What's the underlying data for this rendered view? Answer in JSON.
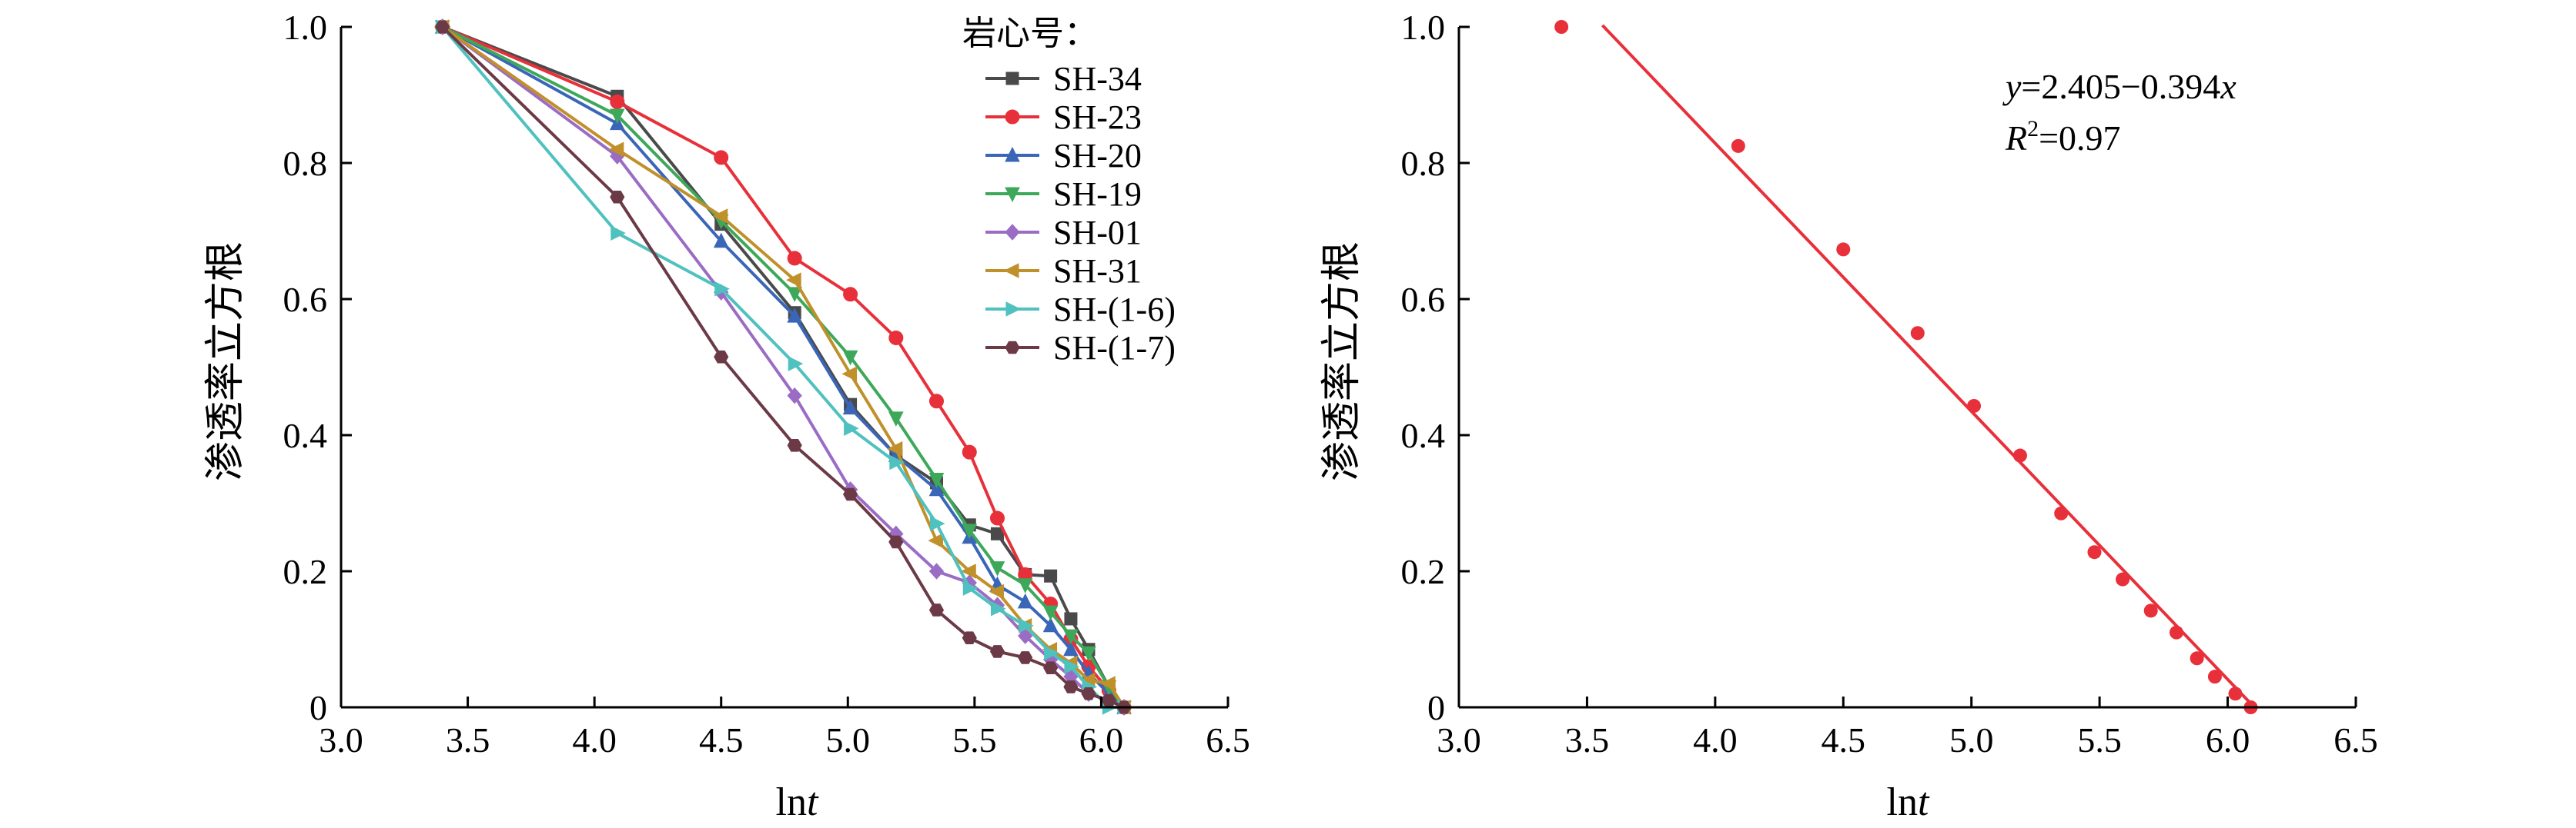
{
  "chart_data": [
    {
      "type": "line",
      "xlabel": "lnt",
      "ylabel": "渗透率立方根",
      "xlim": [
        3.0,
        6.5
      ],
      "ylim": [
        0,
        1.0
      ],
      "xticks": [
        "3.0",
        "3.5",
        "4.0",
        "4.5",
        "5.0",
        "5.5",
        "6.0",
        "6.5"
      ],
      "yticks": [
        "0",
        "0.2",
        "0.4",
        "0.6",
        "0.8",
        "1.0"
      ],
      "legend_title": "岩心号：",
      "legend_position": "top-right",
      "series": [
        {
          "name": "SH-34",
          "color": "#4a4a4a",
          "marker": "square",
          "x": [
            3.4,
            4.09,
            4.5,
            4.79,
            5.01,
            5.19,
            5.35,
            5.48,
            5.59,
            5.7,
            5.8,
            5.88,
            5.95,
            6.03,
            6.09
          ],
          "y": [
            1.0,
            0.898,
            0.71,
            0.58,
            0.445,
            0.37,
            0.33,
            0.268,
            0.255,
            0.195,
            0.193,
            0.13,
            0.085,
            0.03,
            0.0
          ]
        },
        {
          "name": "SH-23",
          "color": "#e8303a",
          "marker": "circle",
          "x": [
            3.4,
            4.09,
            4.5,
            4.79,
            5.01,
            5.19,
            5.35,
            5.48,
            5.59,
            5.7,
            5.8,
            5.88,
            5.95,
            6.03,
            6.09
          ],
          "y": [
            1.0,
            0.89,
            0.808,
            0.66,
            0.607,
            0.543,
            0.45,
            0.375,
            0.278,
            0.195,
            0.152,
            0.1,
            0.06,
            0.025,
            0.0
          ]
        },
        {
          "name": "SH-20",
          "color": "#3a66b8",
          "marker": "triangle-up",
          "x": [
            3.4,
            4.09,
            4.5,
            4.79,
            5.01,
            5.19,
            5.35,
            5.48,
            5.59,
            5.7,
            5.8,
            5.88,
            5.95,
            6.03,
            6.09
          ],
          "y": [
            1.0,
            0.858,
            0.685,
            0.575,
            0.44,
            0.37,
            0.32,
            0.25,
            0.18,
            0.155,
            0.12,
            0.085,
            0.05,
            0.02,
            0.0
          ]
        },
        {
          "name": "SH-19",
          "color": "#3ea85a",
          "marker": "triangle-down",
          "x": [
            3.4,
            4.09,
            4.5,
            4.79,
            5.01,
            5.19,
            5.35,
            5.48,
            5.59,
            5.7,
            5.8,
            5.88,
            5.95,
            6.03,
            6.09
          ],
          "y": [
            1.0,
            0.87,
            0.715,
            0.608,
            0.515,
            0.425,
            0.335,
            0.26,
            0.205,
            0.18,
            0.14,
            0.105,
            0.08,
            0.03,
            0.0
          ]
        },
        {
          "name": "SH-01",
          "color": "#9b6cc4",
          "marker": "diamond",
          "x": [
            3.4,
            4.09,
            4.5,
            4.79,
            5.01,
            5.19,
            5.35,
            5.48,
            5.59,
            5.7,
            5.8,
            5.88,
            5.95,
            6.03,
            6.09
          ],
          "y": [
            1.0,
            0.81,
            0.61,
            0.458,
            0.32,
            0.255,
            0.2,
            0.183,
            0.15,
            0.105,
            0.07,
            0.045,
            0.02,
            0.01,
            0.0
          ]
        },
        {
          "name": "SH-31",
          "color": "#c0902a",
          "marker": "triangle-left",
          "x": [
            3.4,
            4.09,
            4.5,
            4.79,
            5.01,
            5.19,
            5.35,
            5.48,
            5.59,
            5.7,
            5.8,
            5.88,
            5.95,
            6.03,
            6.09
          ],
          "y": [
            1.0,
            0.82,
            0.722,
            0.628,
            0.49,
            0.38,
            0.245,
            0.2,
            0.17,
            0.12,
            0.085,
            0.065,
            0.04,
            0.035,
            0.0
          ]
        },
        {
          "name": "SH-(1-6)",
          "color": "#4fc1bf",
          "marker": "triangle-right",
          "x": [
            3.4,
            4.09,
            4.5,
            4.79,
            5.01,
            5.19,
            5.35,
            5.48,
            5.59,
            5.7,
            5.8,
            5.88,
            5.95,
            6.03,
            6.09
          ],
          "y": [
            1.0,
            0.697,
            0.615,
            0.505,
            0.41,
            0.36,
            0.27,
            0.175,
            0.145,
            0.12,
            0.08,
            0.06,
            0.03,
            0.0,
            0.0
          ]
        },
        {
          "name": "SH-(1-7)",
          "color": "#6b3a46",
          "marker": "hexagon",
          "x": [
            3.4,
            4.09,
            4.5,
            4.79,
            5.01,
            5.19,
            5.35,
            5.48,
            5.59,
            5.7,
            5.8,
            5.88,
            5.95,
            6.03,
            6.09
          ],
          "y": [
            1.0,
            0.75,
            0.515,
            0.385,
            0.313,
            0.243,
            0.143,
            0.102,
            0.082,
            0.073,
            0.058,
            0.03,
            0.02,
            0.01,
            0.0
          ]
        }
      ]
    },
    {
      "type": "scatter",
      "xlabel": "lnt",
      "ylabel": "渗透率立方根",
      "xlim": [
        3.0,
        6.5
      ],
      "ylim": [
        0,
        1.0
      ],
      "xticks": [
        "3.0",
        "3.5",
        "4.0",
        "4.5",
        "5.0",
        "5.5",
        "6.0",
        "6.5"
      ],
      "yticks": [
        "0",
        "0.2",
        "0.4",
        "0.6",
        "0.8",
        "1.0"
      ],
      "color": "#e8303a",
      "points": {
        "x": [
          3.4,
          4.09,
          4.5,
          4.79,
          5.01,
          5.19,
          5.35,
          5.48,
          5.59,
          5.7,
          5.8,
          5.88,
          5.95,
          6.03,
          6.09
        ],
        "y": [
          1.0,
          0.825,
          0.673,
          0.55,
          0.443,
          0.37,
          0.285,
          0.228,
          0.188,
          0.142,
          0.11,
          0.072,
          0.045,
          0.02,
          0.0
        ]
      },
      "fit": {
        "intercept": 2.405,
        "slope": -0.394,
        "x_range": [
          3.56,
          6.1
        ]
      },
      "equation": {
        "y": "y",
        "eq": "=2.405−0.394",
        "x": "x"
      },
      "r2": {
        "R": "R",
        "sup": "2",
        "val": "=0.97"
      }
    }
  ]
}
